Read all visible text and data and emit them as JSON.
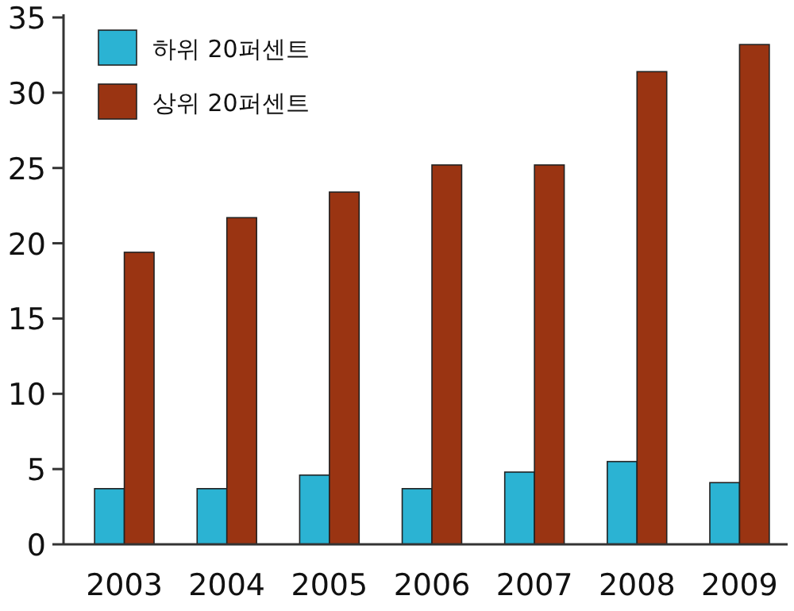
{
  "chart_data": {
    "type": "bar",
    "categories": [
      "2003",
      "2004",
      "2005",
      "2006",
      "2007",
      "2008",
      "2009"
    ],
    "series": [
      {
        "name": "하위 20퍼센트",
        "color": "#2bb3d3",
        "values": [
          3.7,
          3.7,
          4.6,
          3.7,
          4.8,
          5.5,
          4.1
        ]
      },
      {
        "name": "상위 20퍼센트",
        "color": "#9a3412",
        "values": [
          19.4,
          21.7,
          23.4,
          25.2,
          25.2,
          31.4,
          33.2
        ]
      }
    ],
    "ylim": [
      0,
      35
    ],
    "yticks": [
      0,
      5,
      10,
      15,
      20,
      25,
      30,
      35
    ],
    "legend": "top left",
    "grid": false
  }
}
